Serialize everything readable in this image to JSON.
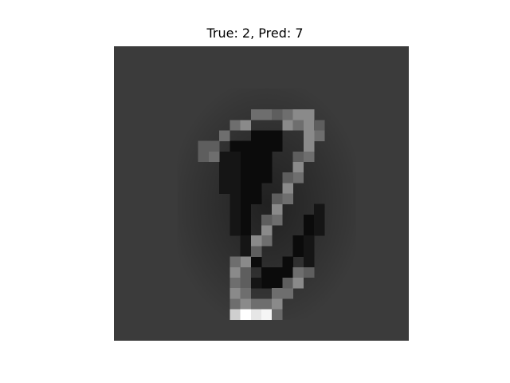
{
  "figure": {
    "title": "True: 2, Pred: 7",
    "true_label": 2,
    "predicted_label": 7
  },
  "image": {
    "description_name": "digit-saliency-image",
    "grid_size": 28,
    "colormap": "gray"
  }
}
